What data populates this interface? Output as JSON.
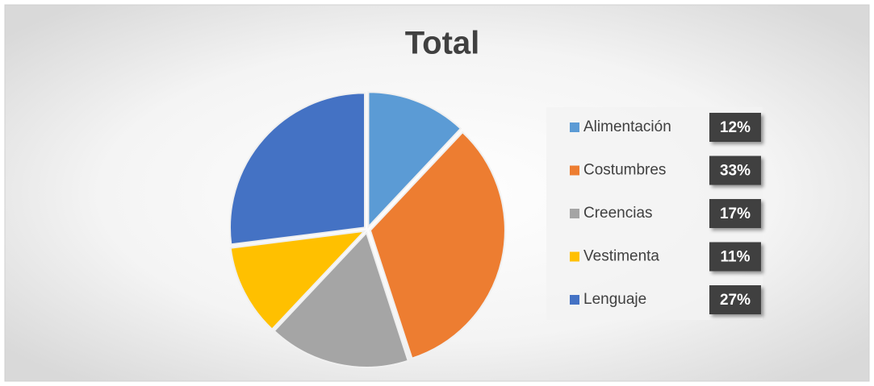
{
  "chart_data": {
    "type": "pie",
    "title": "Total",
    "categories": [
      "Alimentación",
      "Costumbres",
      "Creencias",
      "Vestimenta",
      "Lenguaje"
    ],
    "values": [
      12,
      33,
      17,
      11,
      27
    ],
    "value_labels": [
      "12%",
      "33%",
      "17%",
      "11%",
      "27%"
    ],
    "colors": [
      "#5b9bd5",
      "#ed7d31",
      "#a5a5a5",
      "#ffc000",
      "#4472c4"
    ],
    "legend": "right"
  }
}
